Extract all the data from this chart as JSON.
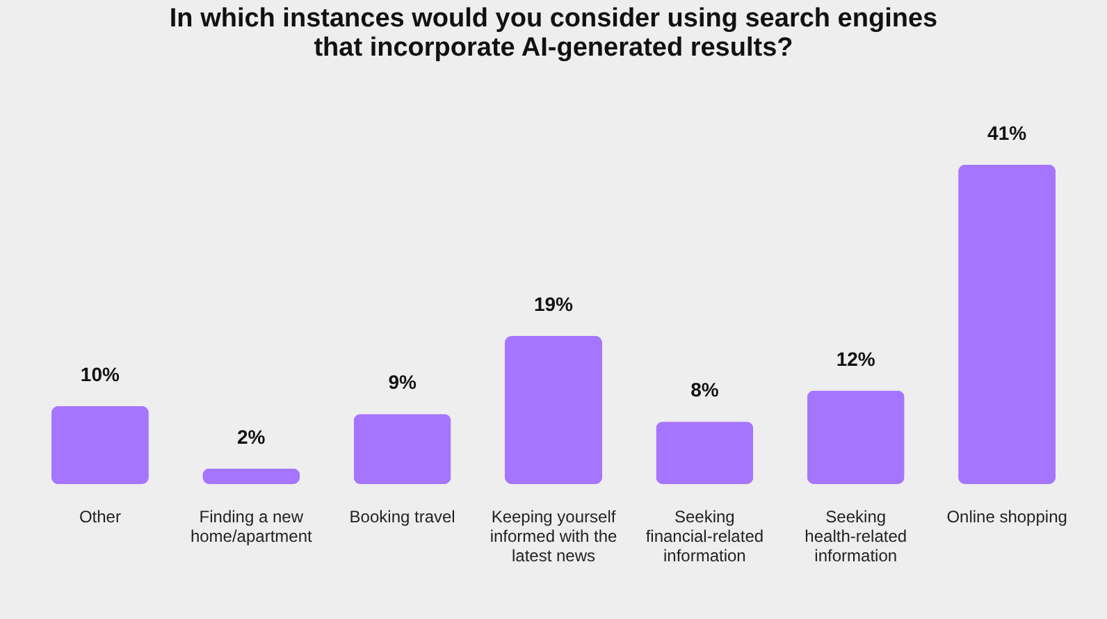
{
  "chart_data": {
    "type": "bar",
    "title": "In which instances would you consider using search engines that incorporate AI-generated results?",
    "categories": [
      "Other",
      "Finding a new home/apartment",
      "Booking travel",
      "Keeping yourself informed with the latest news",
      "Seeking financial-related information",
      "Seeking health-related information",
      "Online shopping"
    ],
    "values": [
      10,
      2,
      9,
      19,
      8,
      12,
      41
    ],
    "value_labels": [
      "10%",
      "2%",
      "9%",
      "19%",
      "8%",
      "12%",
      "41%"
    ],
    "color": "#a675fd",
    "grid": false
  }
}
